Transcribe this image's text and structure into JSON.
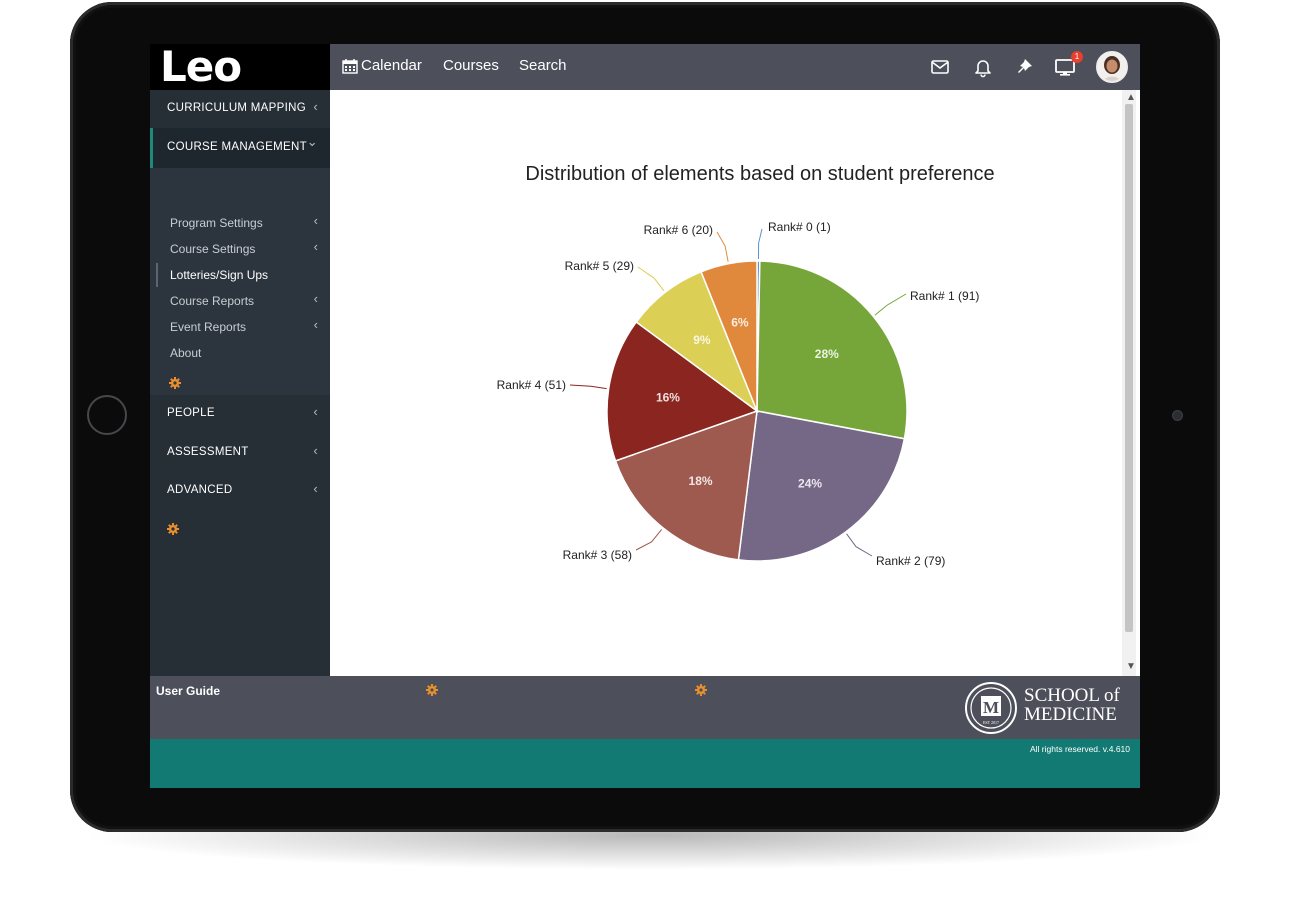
{
  "app": {
    "logo": "Leo"
  },
  "topnav": {
    "items": [
      {
        "label": "Calendar",
        "icon": "calendar-icon"
      },
      {
        "label": "Courses"
      },
      {
        "label": "Search"
      }
    ],
    "icons": [
      "mail-icon",
      "bell-icon",
      "pin-icon",
      "monitor-icon"
    ],
    "notification_count": "1"
  },
  "sidebar": {
    "sections": [
      {
        "label": "CURRICULUM MAPPING",
        "chevron": "‹"
      },
      {
        "label": "COURSE MANAGEMENT",
        "chevron": "⌄",
        "expanded": true
      },
      {
        "label": "PEOPLE",
        "chevron": "‹"
      },
      {
        "label": "ASSESSMENT",
        "chevron": "‹"
      },
      {
        "label": "ADVANCED",
        "chevron": "‹"
      }
    ],
    "submenu": [
      {
        "label": "Program Settings",
        "chevron": "‹"
      },
      {
        "label": "Course Settings",
        "chevron": "‹"
      },
      {
        "label": "Lotteries/Sign Ups",
        "active": true
      },
      {
        "label": "Course Reports",
        "chevron": "‹"
      },
      {
        "label": "Event Reports",
        "chevron": "‹"
      },
      {
        "label": "About"
      }
    ]
  },
  "chart_data": {
    "type": "pie",
    "title": "Distribution of elements based on student preference",
    "slices": [
      {
        "label": "Rank# 0 (1)",
        "value": 1,
        "percent": "0%",
        "color": "#5b8fd6"
      },
      {
        "label": "Rank# 1 (91)",
        "value": 91,
        "percent": "28%",
        "color": "#76a63a"
      },
      {
        "label": "Rank# 2 (79)",
        "value": 79,
        "percent": "24%",
        "color": "#756887"
      },
      {
        "label": "Rank# 3 (58)",
        "value": 58,
        "percent": "18%",
        "color": "#9e5a4f"
      },
      {
        "label": "Rank# 4 (51)",
        "value": 51,
        "percent": "16%",
        "color": "#8a2520"
      },
      {
        "label": "Rank# 5 (29)",
        "value": 29,
        "percent": "9%",
        "color": "#dccf55"
      },
      {
        "label": "Rank# 6 (20)",
        "value": 20,
        "percent": "6%",
        "color": "#e0893c"
      }
    ]
  },
  "footer": {
    "user_guide": "User Guide",
    "school_line1": "SCHOOL of",
    "school_line2": "MEDICINE",
    "copyright": "All rights reserved. v.4.610"
  },
  "colors": {
    "topbar": "#4d4f5a",
    "sidebar": "#262e36",
    "accent_teal": "#137a73",
    "gear_orange": "#e8902e"
  }
}
